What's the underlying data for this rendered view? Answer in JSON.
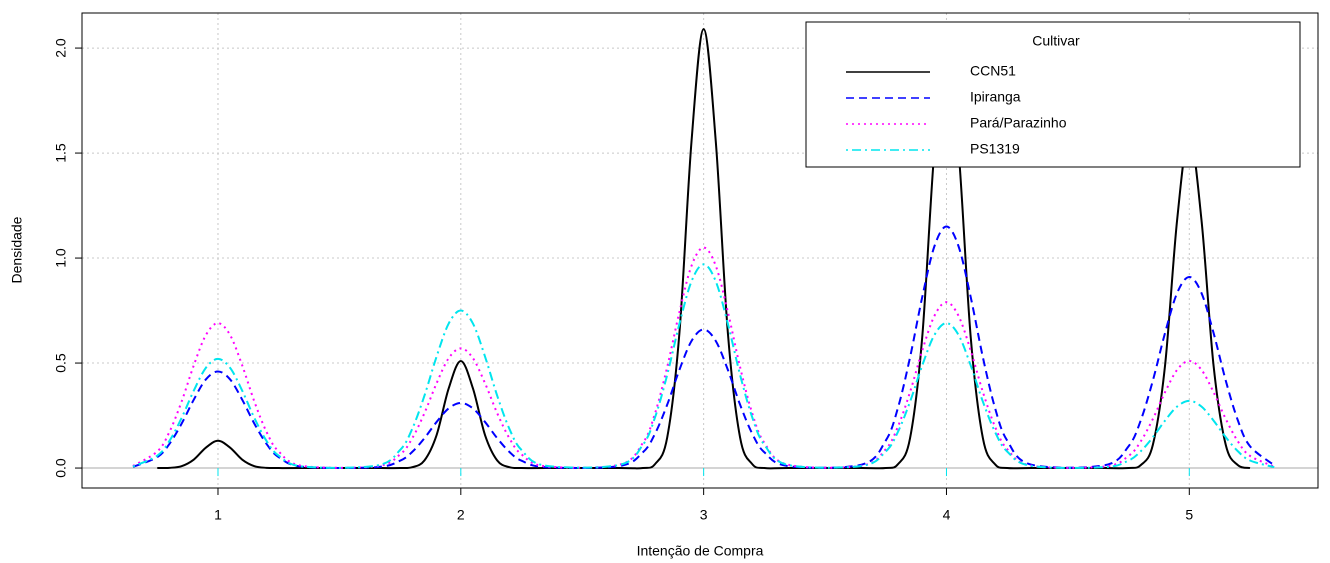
{
  "chart_data": {
    "type": "line",
    "x_label": "Intenção de Compra",
    "y_label": "Densidade",
    "legend_title": "Cultivar",
    "legend": "top-right",
    "grid": true,
    "xlim": [
      0.44,
      5.53
    ],
    "ylim": [
      -0.095,
      2.167
    ],
    "xticks": [
      1,
      2,
      3,
      4,
      5
    ],
    "yticks": [
      {
        "value": 0,
        "label": "0.0"
      },
      0.5,
      {
        "value": 1,
        "label": "1.0"
      },
      1.5,
      {
        "value": 2,
        "label": "2.0"
      }
    ],
    "x": [
      0.65,
      0.75,
      0.8,
      0.85,
      0.9,
      0.95,
      1,
      1.05,
      1.1,
      1.15,
      1.2,
      1.25,
      1.35,
      1.65,
      1.75,
      1.8,
      1.85,
      1.9,
      1.95,
      2,
      2.05,
      2.1,
      2.15,
      2.2,
      2.25,
      2.35,
      2.65,
      2.75,
      2.8,
      2.85,
      2.9,
      2.95,
      3,
      3.05,
      3.1,
      3.15,
      3.2,
      3.25,
      3.35,
      3.65,
      3.75,
      3.8,
      3.85,
      3.9,
      3.95,
      4,
      4.05,
      4.1,
      4.15,
      4.2,
      4.25,
      4.35,
      4.65,
      4.75,
      4.8,
      4.85,
      4.9,
      4.95,
      5,
      5.05,
      5.1,
      5.15,
      5.2,
      5.25,
      5.35
    ],
    "series": [
      {
        "name": "CCN51",
        "color": "#000000",
        "linestyle": "solid",
        "values": [
          null,
          0,
          0.001,
          0.009,
          0.04,
          0.097,
          0.13,
          0.097,
          0.04,
          0.009,
          0.001,
          0,
          0,
          0,
          0,
          0.004,
          0.036,
          0.156,
          0.379,
          0.51,
          0.379,
          0.156,
          0.036,
          0.004,
          0,
          0,
          0,
          0,
          0.019,
          0.146,
          0.64,
          1.555,
          2.09,
          1.555,
          0.64,
          0.146,
          0.019,
          0,
          0,
          0,
          0,
          0.018,
          0.142,
          0.621,
          1.51,
          2.03,
          1.51,
          0.621,
          0.142,
          0.018,
          0,
          0,
          0,
          0,
          0.014,
          0.111,
          0.487,
          1.183,
          1.59,
          1.183,
          0.487,
          0.111,
          0.014,
          0,
          null
        ]
      },
      {
        "name": "Ipiranga",
        "color": "#0000ff",
        "linestyle": "dashed",
        "values": [
          0.006,
          0.052,
          0.115,
          0.211,
          0.325,
          0.422,
          0.46,
          0.422,
          0.325,
          0.211,
          0.115,
          0.052,
          0.006,
          0.004,
          0.035,
          0.077,
          0.142,
          0.219,
          0.284,
          0.31,
          0.284,
          0.219,
          0.142,
          0.077,
          0.035,
          0.004,
          0.009,
          0.075,
          0.164,
          0.302,
          0.467,
          0.605,
          0.66,
          0.605,
          0.467,
          0.302,
          0.164,
          0.075,
          0.009,
          0.016,
          0.131,
          0.286,
          0.527,
          0.813,
          1.055,
          1.15,
          1.055,
          0.813,
          0.527,
          0.286,
          0.131,
          0.016,
          0.013,
          0.104,
          0.227,
          0.417,
          0.643,
          0.834,
          0.91,
          0.834,
          0.643,
          0.417,
          0.227,
          0.104,
          0.013
        ]
      },
      {
        "name": "Pará/Parazinho",
        "color": "#ff00ff",
        "linestyle": "dotted",
        "values": [
          0.01,
          0.079,
          0.172,
          0.316,
          0.488,
          0.633,
          0.69,
          0.633,
          0.488,
          0.316,
          0.172,
          0.079,
          0.01,
          0.008,
          0.065,
          0.142,
          0.261,
          0.403,
          0.523,
          0.57,
          0.523,
          0.403,
          0.261,
          0.142,
          0.065,
          0.008,
          0.015,
          0.12,
          0.261,
          0.481,
          0.742,
          0.963,
          1.05,
          0.963,
          0.742,
          0.481,
          0.261,
          0.12,
          0.015,
          0.011,
          0.09,
          0.197,
          0.362,
          0.559,
          0.724,
          0.79,
          0.724,
          0.559,
          0.362,
          0.197,
          0.09,
          0.011,
          0.007,
          0.058,
          0.127,
          0.234,
          0.361,
          0.468,
          0.51,
          0.468,
          0.361,
          0.234,
          0.127,
          0.058,
          0.007
        ]
      },
      {
        "name": "PS1319",
        "color": "#00e5ee",
        "linestyle": "dashdot",
        "values": [
          0.007,
          0.059,
          0.129,
          0.238,
          0.368,
          0.477,
          0.52,
          0.477,
          0.368,
          0.238,
          0.129,
          0.059,
          0.007,
          0.011,
          0.086,
          0.187,
          0.344,
          0.53,
          0.688,
          0.75,
          0.688,
          0.53,
          0.344,
          0.187,
          0.086,
          0.011,
          0.014,
          0.111,
          0.242,
          0.444,
          0.686,
          0.889,
          0.97,
          0.889,
          0.686,
          0.444,
          0.242,
          0.111,
          0.014,
          0.01,
          0.079,
          0.172,
          0.316,
          0.488,
          0.633,
          0.69,
          0.633,
          0.488,
          0.316,
          0.172,
          0.079,
          0.01,
          0.004,
          0.036,
          0.08,
          0.147,
          0.226,
          0.293,
          0.32,
          0.293,
          0.226,
          0.147,
          0.08,
          0.036,
          0.004
        ]
      }
    ]
  }
}
